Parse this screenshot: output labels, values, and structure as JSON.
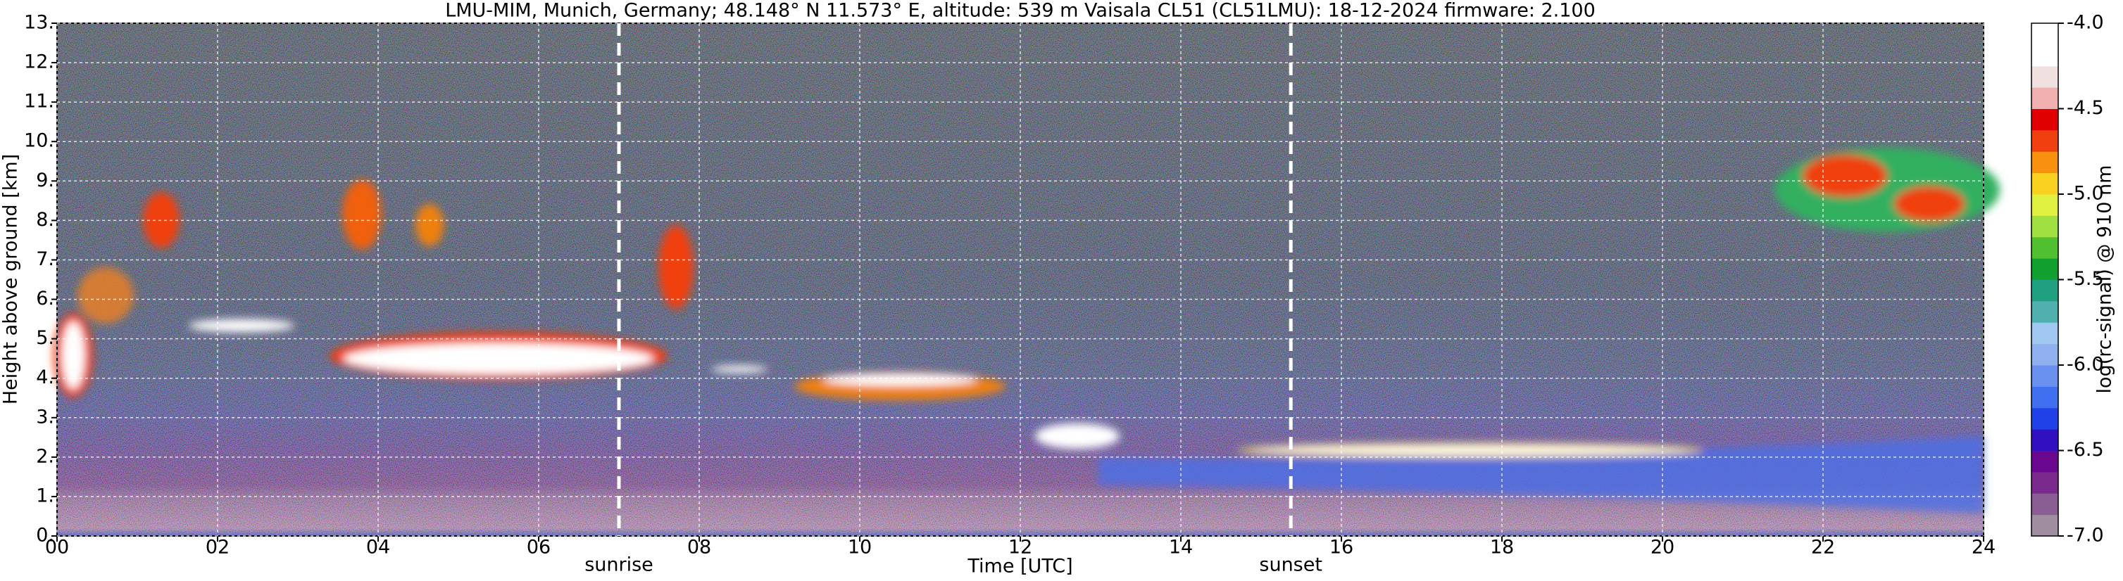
{
  "chart_data": {
    "type": "heatmap",
    "title": "LMU-MIM, Munich, Germany; 48.148° N 11.573° E, altitude: 539 m    Vaisala CL51 (CL51LMU): 18-12-2024    firmware: 2.100",
    "x_label": "Time [UTC]",
    "y_label": "Height above ground [km]",
    "xlim": [
      0,
      24
    ],
    "xticks": [
      {
        "value": 0,
        "label": "00"
      },
      {
        "value": 2,
        "label": "02"
      },
      {
        "value": 4,
        "label": "04"
      },
      {
        "value": 6,
        "label": "06"
      },
      {
        "value": 8,
        "label": "08"
      },
      10,
      12,
      14,
      16,
      18,
      20,
      22,
      24
    ],
    "ylim": [
      0,
      13
    ],
    "yticks": [
      {
        "value": 0,
        "label": "0."
      },
      {
        "value": 1,
        "label": "1."
      },
      {
        "value": 2,
        "label": "2."
      },
      {
        "value": 3,
        "label": "3."
      },
      {
        "value": 4,
        "label": "4."
      },
      {
        "value": 5,
        "label": "5."
      },
      {
        "value": 6,
        "label": "6."
      },
      {
        "value": 7,
        "label": "7."
      },
      {
        "value": 8,
        "label": "8."
      },
      {
        "value": 9,
        "label": "9."
      },
      {
        "value": 10,
        "label": "10."
      },
      {
        "value": 11,
        "label": "11."
      },
      {
        "value": 12,
        "label": "12."
      },
      {
        "value": 13,
        "label": "13."
      }
    ],
    "grid": true,
    "annotations": [
      {
        "text": "sunrise",
        "x": 7.0
      },
      {
        "text": "sunset",
        "x": 15.37
      }
    ],
    "colorbar": {
      "label": "log(rc-signal) @ 910 nm",
      "lim": [
        -7,
        -4
      ],
      "ticks": [
        {
          "value": -7,
          "label": "-7.0"
        },
        -6.5,
        {
          "value": -6,
          "label": "-6.0"
        },
        -5.5,
        {
          "value": -5,
          "label": "-5.0"
        },
        -4.5,
        {
          "value": -4,
          "label": "-4.0"
        }
      ],
      "colors": [
        "#9e8ea0",
        "#8a5e92",
        "#7a2a8c",
        "#6a0890",
        "#3010c0",
        "#2040e8",
        "#4070f0",
        "#6a90f0",
        "#90b0f0",
        "#a0c8f0",
        "#50b0b0",
        "#20a080",
        "#10a030",
        "#50c030",
        "#a0e040",
        "#e0f040",
        "#f8d020",
        "#f89010",
        "#f04010",
        "#e00000",
        "#f0b0b0",
        "#f0e0e0",
        "#ffffff",
        "#ffffff"
      ]
    }
  }
}
